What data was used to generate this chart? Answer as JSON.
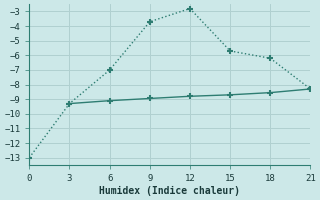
{
  "line1_x": [
    0,
    3,
    6,
    9,
    12,
    15,
    18,
    21
  ],
  "line1_y": [
    -13,
    -9.3,
    -7.0,
    -3.7,
    -2.8,
    -5.7,
    -6.2,
    -8.3
  ],
  "line2_x": [
    3,
    6,
    9,
    12,
    15,
    18,
    21
  ],
  "line2_y": [
    -9.3,
    -9.1,
    -8.95,
    -8.8,
    -8.7,
    -8.55,
    -8.3
  ],
  "line_color": "#2e7d72",
  "bg_color": "#cce8e8",
  "grid_color": "#b0d0d0",
  "xlabel": "Humidex (Indice chaleur)",
  "xlim": [
    0,
    21
  ],
  "ylim": [
    -13.5,
    -2.5
  ],
  "xticks": [
    0,
    3,
    6,
    9,
    12,
    15,
    18,
    21
  ],
  "yticks": [
    -3,
    -4,
    -5,
    -6,
    -7,
    -8,
    -9,
    -10,
    -11,
    -12,
    -13
  ]
}
